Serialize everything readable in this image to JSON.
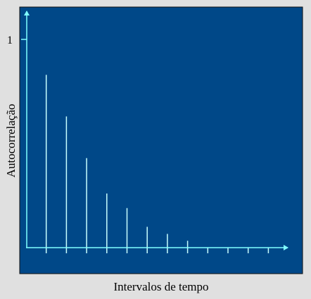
{
  "chart_data": {
    "type": "bar",
    "xlabel": "Intervalos de tempo",
    "ylabel": "Autocorrelação",
    "y_ticks": [
      {
        "value": 1,
        "label": "1"
      }
    ],
    "ylim": [
      0,
      1.05
    ],
    "x_positions": [
      1,
      2,
      3,
      4,
      5,
      6,
      7,
      8,
      9,
      10,
      11,
      12
    ],
    "values": [
      0.83,
      0.63,
      0.43,
      0.26,
      0.19,
      0.1,
      0.066,
      0.033,
      0,
      0,
      0,
      0
    ],
    "colors": {
      "background": "#e0e0e0",
      "plot_area": "#004888",
      "axis": "#80ffff",
      "bars": "#c8ffff"
    }
  }
}
